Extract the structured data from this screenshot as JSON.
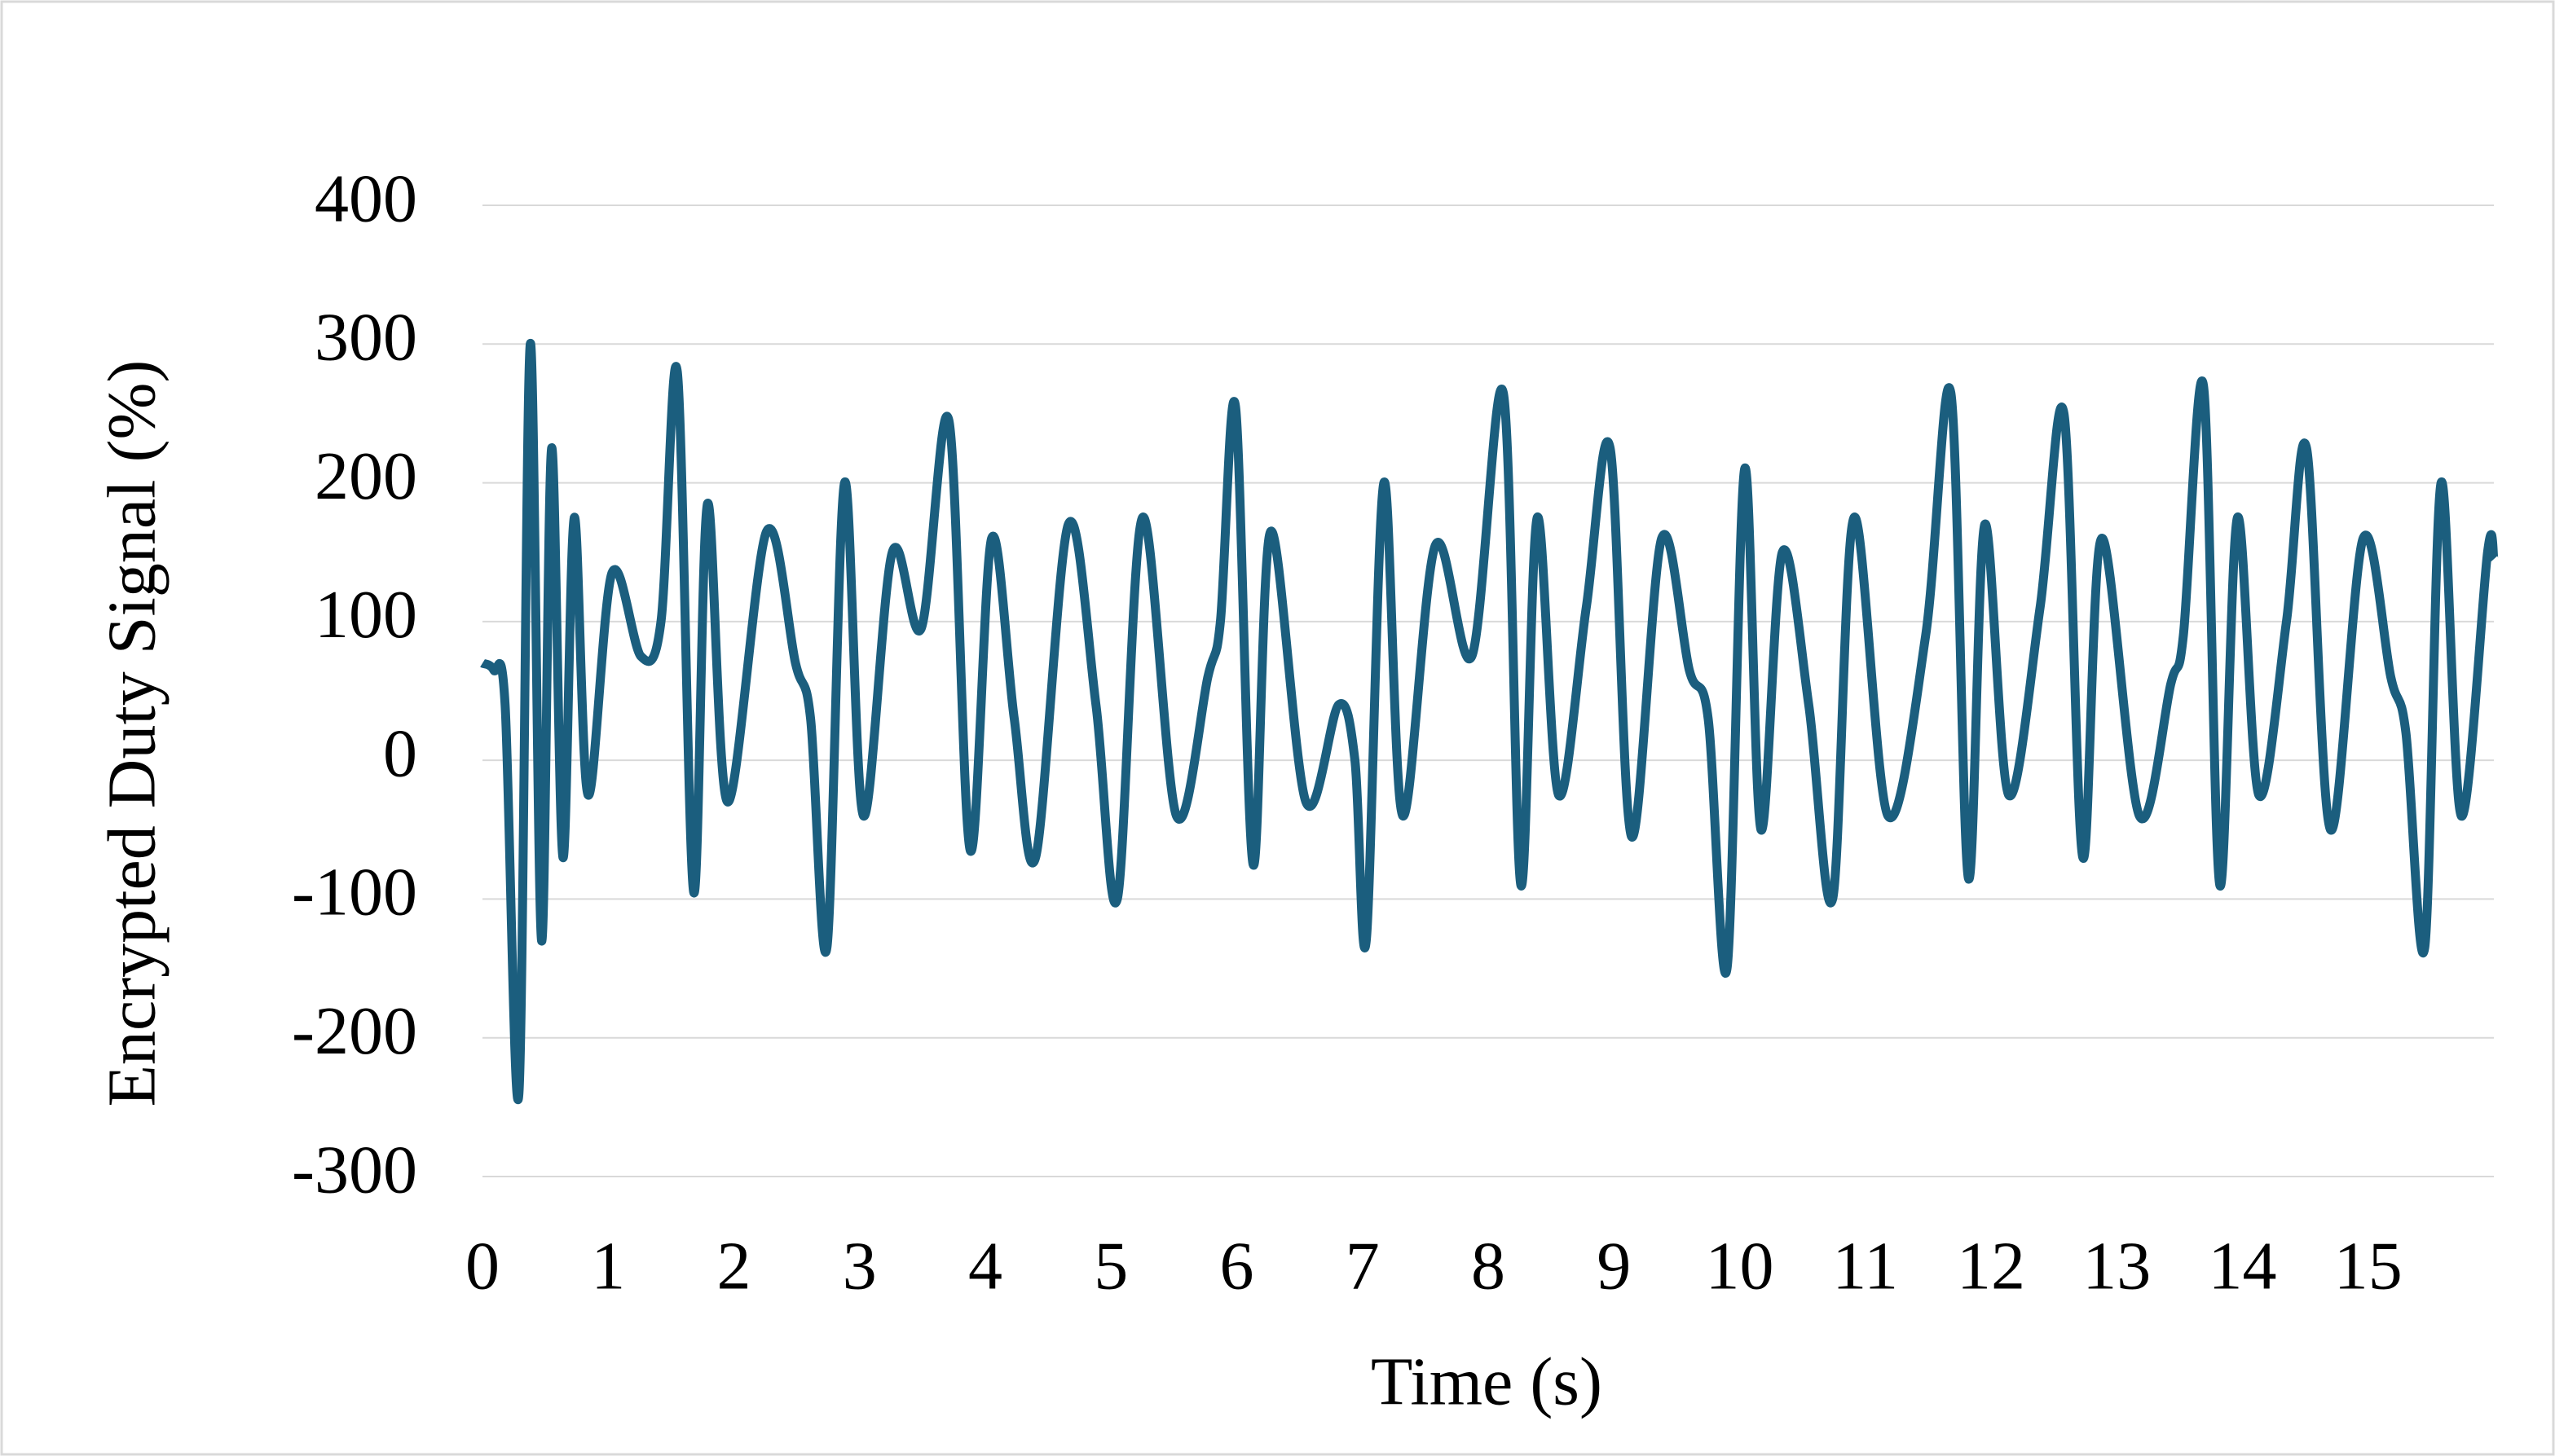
{
  "chart_data": {
    "type": "line",
    "xlabel": "Time (s)",
    "ylabel": "Encrypted Duty Signal (%)",
    "xlim": [
      0,
      16
    ],
    "xticks": [
      0,
      1,
      2,
      3,
      4,
      5,
      6,
      7,
      8,
      9,
      10,
      11,
      12,
      13,
      14,
      15
    ],
    "ylim": [
      -300,
      400
    ],
    "yticks": [
      -300,
      -200,
      -100,
      0,
      100,
      200,
      300,
      400
    ],
    "grid": true,
    "series": [
      {
        "name": "Encrypted Duty Signal",
        "color": "#1b5e7e",
        "x": [
          0,
          0.09,
          0.18,
          0.29,
          0.38,
          0.47,
          0.55,
          0.64,
          0.73,
          0.84,
          1.03,
          1.26,
          1.42,
          1.55,
          1.68,
          1.79,
          1.95,
          2.26,
          2.49,
          2.61,
          2.74,
          2.88,
          3.03,
          3.26,
          3.49,
          3.71,
          3.88,
          4.05,
          4.23,
          4.4,
          4.66,
          4.88,
          5.05,
          5.25,
          5.52,
          5.77,
          5.87,
          5.99,
          6.13,
          6.27,
          6.55,
          6.81,
          6.94,
          7.03,
          7.17,
          7.32,
          7.58,
          7.87,
          8.12,
          8.26,
          8.39,
          8.56,
          8.78,
          8.97,
          9.14,
          9.38,
          9.6,
          9.75,
          9.9,
          10.04,
          10.17,
          10.34,
          10.55,
          10.74,
          10.91,
          11.18,
          11.48,
          11.68,
          11.82,
          11.95,
          12.14,
          12.39,
          12.58,
          12.73,
          12.88,
          13.18,
          13.43,
          13.53,
          13.69,
          13.82,
          13.96,
          14.13,
          14.35,
          14.51,
          14.7,
          14.96,
          15.18,
          15.3,
          15.45,
          15.58,
          15.74,
          15.95,
          16
        ],
        "values": [
          70,
          65,
          40,
          -240,
          300,
          -130,
          225,
          -70,
          175,
          -25,
          135,
          75,
          100,
          280,
          -95,
          185,
          -30,
          165,
          70,
          30,
          -135,
          200,
          -40,
          150,
          95,
          245,
          -65,
          160,
          30,
          -70,
          170,
          40,
          -100,
          175,
          -40,
          60,
          100,
          255,
          -75,
          165,
          -30,
          40,
          0,
          -130,
          200,
          -40,
          155,
          75,
          265,
          -90,
          175,
          -25,
          110,
          225,
          -55,
          160,
          65,
          30,
          -150,
          210,
          -50,
          150,
          40,
          -100,
          175,
          -40,
          90,
          265,
          -85,
          170,
          -25,
          110,
          250,
          -70,
          160,
          -40,
          55,
          90,
          270,
          -90,
          175,
          -25,
          100,
          225,
          -50,
          160,
          60,
          20,
          -135,
          200,
          -40,
          150,
          145
        ]
      }
    ]
  }
}
